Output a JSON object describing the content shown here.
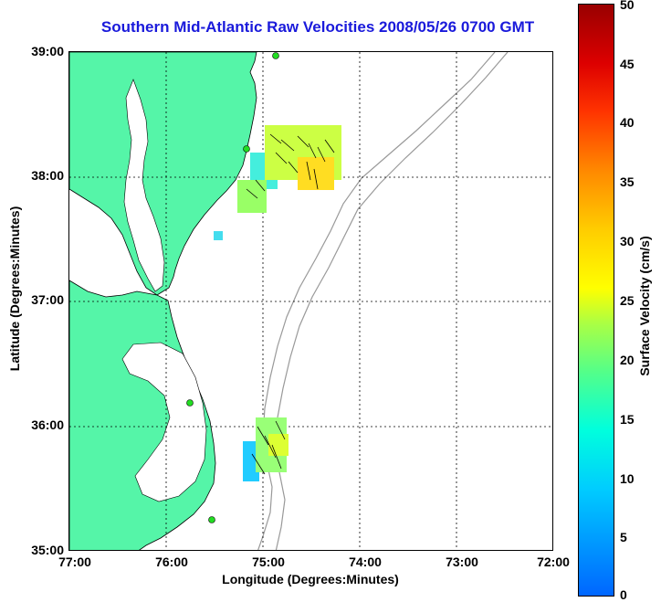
{
  "title": "Southern Mid-Atlantic Raw Velocities 2008/05/26 0700 GMT",
  "axes": {
    "x_label": "Longitude (Degrees:Minutes)",
    "y_label": "Latitude (Degrees:Minutes)",
    "x_ticks": [
      "77:00",
      "76:00",
      "75:00",
      "74:00",
      "73:00",
      "72:00"
    ],
    "y_ticks": [
      "39:00",
      "38:00",
      "37:00",
      "36:00",
      "35:00"
    ]
  },
  "colorbar": {
    "label": "Surface Velocity (cm/s)",
    "ticks": [
      "50",
      "45",
      "40",
      "35",
      "30",
      "25",
      "20",
      "15",
      "10",
      "5",
      "0"
    ],
    "min_color": "#0066ff",
    "max_color": "#990000"
  },
  "colors": {
    "title": "#1a1adb",
    "land": "#55f5a8",
    "coastline": "#000000",
    "bathymetry": "#999999",
    "station": "#22dd22"
  },
  "map_data": {
    "lon_range": [
      "77:00",
      "72:00"
    ],
    "lat_range": [
      "35:00",
      "39:00"
    ],
    "radar_stations": 4,
    "velocity_patches": 3
  }
}
